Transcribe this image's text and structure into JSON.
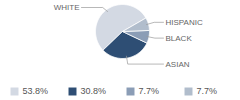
{
  "chart_data": {
    "type": "pie",
    "categories": [
      "WHITE",
      "ASIAN",
      "BLACK",
      "HISPANIC"
    ],
    "values": [
      53.8,
      30.8,
      7.7,
      7.7
    ],
    "value_labels": [
      "53.8%",
      "30.8%",
      "7.7%",
      "7.7%"
    ],
    "colors": [
      "#d3d9e3",
      "#2e4e74",
      "#8b9db6",
      "#b1bdcc"
    ],
    "legend": "bottom"
  }
}
